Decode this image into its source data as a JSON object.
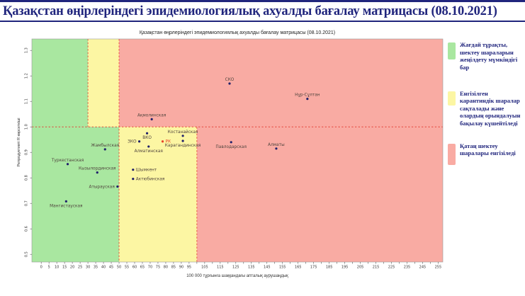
{
  "page": {
    "title": "Қазақстан өңірлеріндегі эпидемиологиялық ахуалды бағалау матрицасы  (08.10.2021)"
  },
  "chart": {
    "title": "Қазақстан өңрлеріндегі эпидемиологиялық ахуалды бағалау матрицасы  (08.10.2021)"
  },
  "chart_data": {
    "type": "scatter",
    "title": "Қазақстан өңрлеріндегі эпидемиологиялық ахуалды бағалау матрицасы  (08.10.2021)",
    "xlabel": "100 000 тұрғынға шаққандағы апталық аурушаңдық",
    "ylabel": "Репродуктивті R көрсеткіші",
    "xlim": [
      -6,
      258
    ],
    "ylim": [
      0.47,
      1.345
    ],
    "x_tick_labels": [
      0,
      5,
      10,
      15,
      20,
      25,
      30,
      35,
      40,
      45,
      50,
      55,
      60,
      65,
      70,
      75,
      80,
      85,
      90,
      95,
      105,
      115,
      125,
      135,
      145,
      155,
      165,
      175,
      185,
      195,
      205,
      215,
      225,
      235,
      245,
      255
    ],
    "x_minor_step": 5,
    "x_minor_max": 255,
    "y_ticks": [
      "0.5",
      "0.6",
      "0.7",
      "0.8",
      "0.9",
      "1.0",
      "1.1",
      "1.2",
      "1.3"
    ],
    "grid": false,
    "thresholds": {
      "r_line": 1.0,
      "high_r_zone_breaks": [
        30,
        50
      ],
      "low_r_zone_breaks": [
        50,
        100
      ]
    },
    "zone_colors": {
      "green": "#a9e7a0",
      "yellow": "#fcf6a3",
      "red": "#f9aba3"
    },
    "dashed_line_color": "#e23b2e",
    "point_color": "#20206a",
    "point_label_color": "#51453e",
    "points": [
      {
        "name": "СКО",
        "x": 121,
        "y": 1.17,
        "label_pos": "above"
      },
      {
        "name": "Нұр-Сұлтан",
        "x": 171,
        "y": 1.11,
        "label_pos": "above"
      },
      {
        "name": "Ақмолинская",
        "x": 71,
        "y": 1.03,
        "label_pos": "above"
      },
      {
        "name": "Костанайская",
        "x": 91,
        "y": 0.965,
        "label_pos": "above"
      },
      {
        "name": "ВКО",
        "x": 68,
        "y": 0.975,
        "label_pos": "below"
      },
      {
        "name": "ЗКО",
        "x": 63,
        "y": 0.943,
        "label_pos": "left"
      },
      {
        "name": "РК",
        "x": 78,
        "y": 0.943,
        "label_pos": "right",
        "color": "#e8432a"
      },
      {
        "name": "Карагандинская",
        "x": 91,
        "y": 0.945,
        "label_pos": "below"
      },
      {
        "name": "Алматинская",
        "x": 69,
        "y": 0.923,
        "label_pos": "below"
      },
      {
        "name": "Жамбылская",
        "x": 41,
        "y": 0.912,
        "label_pos": "above"
      },
      {
        "name": "Павлодарская",
        "x": 122,
        "y": 0.94,
        "label_pos": "below"
      },
      {
        "name": "Алматы",
        "x": 151,
        "y": 0.915,
        "label_pos": "above"
      },
      {
        "name": "Туркестанская",
        "x": 17,
        "y": 0.854,
        "label_pos": "above"
      },
      {
        "name": "Кызылординская",
        "x": 36,
        "y": 0.821,
        "label_pos": "above"
      },
      {
        "name": "Шымкент",
        "x": 59,
        "y": 0.832,
        "label_pos": "right"
      },
      {
        "name": "Актюбинская",
        "x": 59,
        "y": 0.796,
        "label_pos": "right"
      },
      {
        "name": "Атырауская",
        "x": 49,
        "y": 0.766,
        "label_pos": "left"
      },
      {
        "name": "Мангистауская",
        "x": 16,
        "y": 0.708,
        "label_pos": "below"
      }
    ]
  },
  "legend": {
    "items": [
      {
        "color": "#a9e7a0",
        "text": "Жағдай тұрақты, шектеу шараларын жеңілдету мүмкіндігі бар"
      },
      {
        "color": "#fcf6a3",
        "text": "Енгізілген карантиндік шаралар сақталады және олардың орындалуын бақылау күшейтіледі"
      },
      {
        "color": "#f9aba3",
        "text": "Қатаң шектеу шаралары енгізіледі"
      }
    ]
  }
}
